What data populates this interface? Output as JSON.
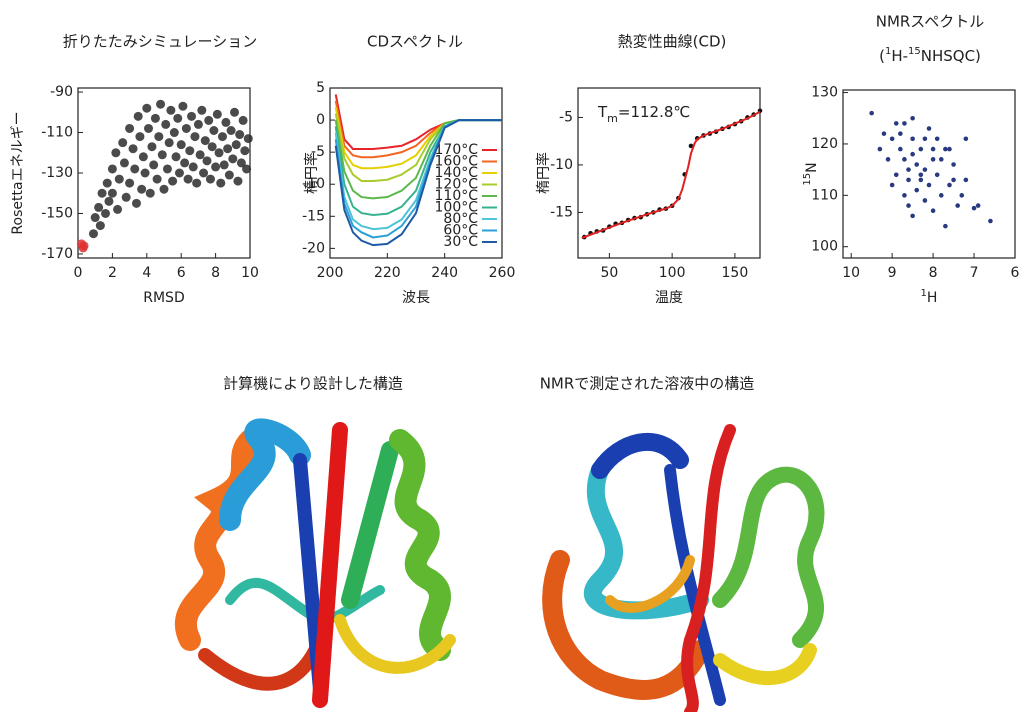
{
  "chart_data": [
    {
      "type": "scatter",
      "title": "折りたたみシミュレーション",
      "xlabel": "RMSD",
      "ylabel": "Rosettaエネルギー",
      "xlim": [
        0,
        10
      ],
      "xticks": [
        0,
        2,
        4,
        6,
        8,
        10
      ],
      "ylim": [
        -172,
        -88
      ],
      "yticks": [
        -90,
        -110,
        -130,
        -150,
        -170
      ],
      "series": [
        {
          "color": "#2b2b2b",
          "mode": "markers",
          "x": [
            0.9,
            1.0,
            1.2,
            1.3,
            1.4,
            1.6,
            1.7,
            1.8,
            2.0,
            2.0,
            2.2,
            2.3,
            2.4,
            2.6,
            2.7,
            2.8,
            3.0,
            3.0,
            3.2,
            3.3,
            3.4,
            3.5,
            3.6,
            3.7,
            3.8,
            3.9,
            4.0,
            4.1,
            4.2,
            4.3,
            4.4,
            4.5,
            4.6,
            4.7,
            4.8,
            4.9,
            5.0,
            5.1,
            5.2,
            5.3,
            5.4,
            5.5,
            5.6,
            5.7,
            5.8,
            5.9,
            6.0,
            6.1,
            6.2,
            6.3,
            6.4,
            6.5,
            6.6,
            6.7,
            6.8,
            6.9,
            7.0,
            7.1,
            7.2,
            7.3,
            7.4,
            7.5,
            7.6,
            7.7,
            7.8,
            7.9,
            8.0,
            8.1,
            8.2,
            8.3,
            8.4,
            8.5,
            8.6,
            8.7,
            8.8,
            8.9,
            9.0,
            9.1,
            9.2,
            9.3,
            9.4,
            9.5,
            9.6,
            9.7,
            9.8,
            9.9
          ],
          "values": [
            -160,
            -152,
            -147,
            -156,
            -140,
            -150,
            -135,
            -144,
            -128,
            -140,
            -120,
            -148,
            -133,
            -115,
            -125,
            -142,
            -108,
            -135,
            -118,
            -128,
            -145,
            -102,
            -112,
            -138,
            -122,
            -130,
            -98,
            -108,
            -140,
            -117,
            -126,
            -103,
            -133,
            -112,
            -96,
            -121,
            -138,
            -106,
            -128,
            -115,
            -99,
            -134,
            -110,
            -122,
            -103,
            -130,
            -116,
            -97,
            -125,
            -108,
            -133,
            -119,
            -102,
            -127,
            -112,
            -135,
            -106,
            -121,
            -99,
            -130,
            -114,
            -124,
            -104,
            -133,
            -117,
            -109,
            -127,
            -101,
            -120,
            -135,
            -112,
            -126,
            -105,
            -118,
            -131,
            -109,
            -123,
            -100,
            -116,
            -134,
            -111,
            -125,
            -104,
            -119,
            -128,
            -113
          ]
        },
        {
          "color": "#e03030",
          "mode": "markers",
          "x": [
            0.2,
            0.3,
            0.35
          ],
          "values": [
            -165,
            -167,
            -166
          ]
        }
      ]
    },
    {
      "type": "line",
      "title": "CDスペクトル",
      "xlabel": "波長",
      "ylabel": "楕円率",
      "xlim": [
        200,
        260
      ],
      "xticks": [
        200,
        220,
        240,
        260
      ],
      "ylim": [
        -21.5,
        5
      ],
      "yticks": [
        5,
        0,
        -5,
        -10,
        -15,
        -20
      ],
      "x": [
        202,
        205,
        208,
        211,
        215,
        220,
        225,
        230,
        235,
        240,
        245,
        250,
        255,
        260
      ],
      "series": [
        {
          "name": "170°C",
          "color": "#e8232a",
          "values": [
            4,
            -3,
            -4.5,
            -4.5,
            -4.5,
            -4.3,
            -4,
            -3,
            -1.5,
            -0.5,
            0,
            0,
            0,
            0
          ]
        },
        {
          "name": "160°C",
          "color": "#f26522",
          "values": [
            3,
            -4,
            -5.5,
            -5.8,
            -5.8,
            -5.5,
            -5,
            -4,
            -2,
            -0.5,
            0,
            0,
            0,
            0
          ]
        },
        {
          "name": "140°C",
          "color": "#e6cf00",
          "values": [
            2,
            -5,
            -7,
            -7.5,
            -7.5,
            -7.3,
            -6.8,
            -5.5,
            -2.5,
            -0.5,
            0,
            0,
            0,
            0
          ]
        },
        {
          "name": "120°C",
          "color": "#a8cc2e",
          "values": [
            1,
            -6,
            -8.5,
            -9.5,
            -9.5,
            -9.3,
            -8.5,
            -7,
            -3,
            -0.5,
            0,
            0,
            0,
            0
          ]
        },
        {
          "name": "110°C",
          "color": "#5bb84a",
          "values": [
            0,
            -8,
            -11,
            -12,
            -12.2,
            -12,
            -11,
            -9,
            -4,
            -0.5,
            0,
            0,
            0,
            0
          ]
        },
        {
          "name": "100°C",
          "color": "#36b38e",
          "values": [
            -1,
            -10,
            -13.5,
            -14.5,
            -14.8,
            -14.6,
            -13.5,
            -11,
            -5,
            -1,
            0,
            0,
            0,
            0
          ]
        },
        {
          "name": "80°C",
          "color": "#4fc3d8",
          "values": [
            -2,
            -12,
            -15.5,
            -16.5,
            -17,
            -16.8,
            -15.5,
            -12.5,
            -6,
            -1,
            0,
            0,
            0,
            0
          ]
        },
        {
          "name": "60°C",
          "color": "#2b9fd8",
          "values": [
            -3,
            -13,
            -16.5,
            -17.5,
            -18.3,
            -18,
            -16.5,
            -13.5,
            -6.5,
            -1,
            0,
            0,
            0,
            0
          ]
        },
        {
          "name": "30°C",
          "color": "#1f5aa6",
          "values": [
            -4,
            -14,
            -17.5,
            -18.8,
            -19.5,
            -19.3,
            -17.8,
            -14.5,
            -7,
            -1.2,
            0,
            0,
            0,
            0
          ]
        }
      ]
    },
    {
      "type": "scatter",
      "title": "熱変性曲線(CD)",
      "xlabel": "温度",
      "ylabel": "楕円率",
      "annotation": [
        "T",
        {
          "sub": "m"
        },
        "=112.8℃"
      ],
      "xlim": [
        25,
        170
      ],
      "xticks": [
        50,
        100,
        150
      ],
      "ylim": [
        -19.8,
        -1.9
      ],
      "yticks": [
        -5,
        -10,
        -15
      ],
      "series": [
        {
          "color": "#111111",
          "mode": "markers",
          "x": [
            30,
            35,
            40,
            45,
            50,
            55,
            60,
            65,
            70,
            75,
            80,
            85,
            90,
            95,
            100,
            105,
            110,
            115,
            120,
            125,
            130,
            135,
            140,
            145,
            150,
            155,
            160,
            165,
            170
          ],
          "values": [
            -17.6,
            -17.2,
            -17.0,
            -16.9,
            -16.5,
            -16.2,
            -16.1,
            -15.8,
            -15.6,
            -15.5,
            -15.2,
            -15.0,
            -14.7,
            -14.6,
            -14.3,
            -13.5,
            -11.0,
            -8.0,
            -7.2,
            -6.9,
            -6.7,
            -6.5,
            -6.2,
            -6.0,
            -5.7,
            -5.4,
            -5.0,
            -4.7,
            -4.3
          ]
        },
        {
          "color": "#e02020",
          "mode": "line",
          "x": [
            28,
            40,
            60,
            80,
            95,
            100,
            105,
            108,
            110,
            112.8,
            115,
            118,
            120,
            125,
            140,
            160,
            170
          ],
          "values": [
            -17.7,
            -17.1,
            -16.1,
            -15.2,
            -14.6,
            -14.3,
            -13.6,
            -12.6,
            -11.6,
            -10.2,
            -8.8,
            -7.7,
            -7.3,
            -6.9,
            -6.2,
            -5.1,
            -4.4
          ]
        }
      ]
    },
    {
      "type": "scatter",
      "title": "NMRスペクトル",
      "subtitle": [
        "(",
        {
          "sup": "1"
        },
        "H-",
        {
          "sup": "15"
        },
        "NHSQC)"
      ],
      "xlabel": [
        {
          "sup": "1"
        },
        "H"
      ],
      "ylabel": [
        {
          "sup": "15"
        },
        "N"
      ],
      "xlim": [
        10.2,
        6
      ],
      "xticks": [
        10,
        9,
        8,
        7,
        6
      ],
      "ylim": [
        97.8,
        130.5
      ],
      "yticks": [
        100,
        110,
        120,
        130
      ],
      "series": [
        {
          "color": "#2a3a80",
          "mode": "markers",
          "x": [
            6.6,
            6.9,
            7.0,
            7.2,
            7.3,
            7.4,
            7.5,
            7.6,
            7.7,
            7.7,
            7.8,
            7.9,
            7.9,
            8.0,
            8.0,
            8.1,
            8.1,
            8.2,
            8.2,
            8.3,
            8.3,
            8.4,
            8.4,
            8.5,
            8.5,
            8.5,
            8.6,
            8.6,
            8.7,
            8.7,
            8.8,
            8.8,
            8.9,
            8.9,
            9.0,
            9.1,
            9.2,
            9.3,
            9.5,
            8.5,
            7.2,
            7.6,
            8.0,
            8.3,
            8.7,
            9.0,
            7.5,
            7.8,
            8.2,
            8.6
          ],
          "values": [
            105,
            108,
            107.5,
            113,
            110,
            108,
            116,
            112,
            104,
            119,
            110,
            114,
            121,
            107,
            117,
            112,
            123,
            109,
            115,
            119,
            113,
            111,
            116,
            106,
            118,
            121,
            113,
            115,
            110,
            117,
            119,
            122,
            114,
            124,
            121,
            117,
            122,
            119,
            126,
            125,
            121,
            119,
            119,
            114,
            124,
            112,
            113,
            117,
            121,
            108
          ]
        }
      ]
    }
  ],
  "sections": [
    "計算機により設計した構造",
    "NMRで測定された溶液中の構造"
  ]
}
